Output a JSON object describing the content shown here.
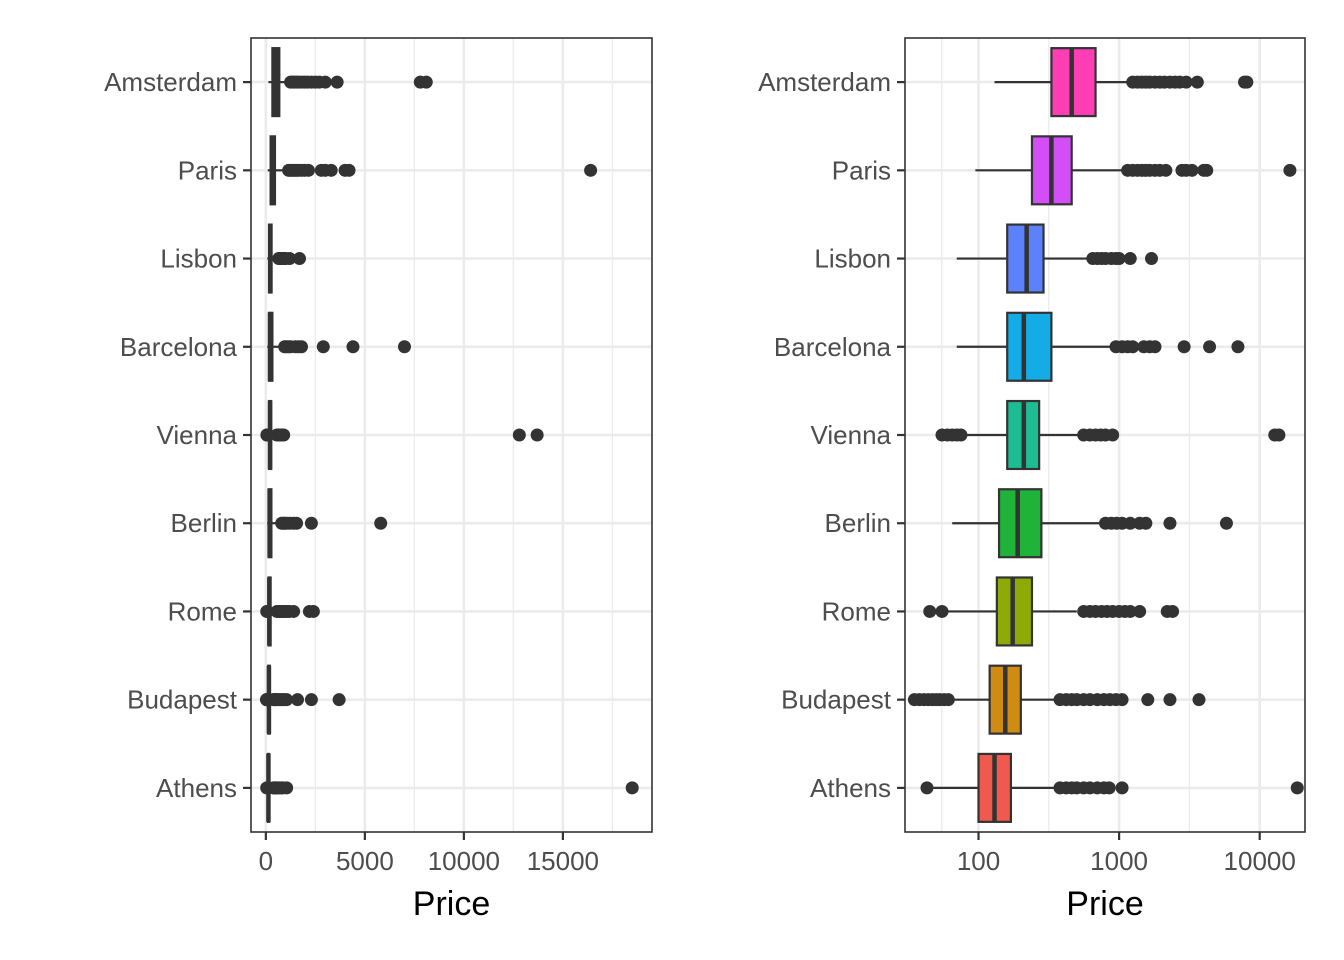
{
  "chart_data": [
    {
      "type": "boxplot",
      "panel": "linear",
      "categories": [
        "Amsterdam",
        "Paris",
        "Lisbon",
        "Barcelona",
        "Vienna",
        "Berlin",
        "Rome",
        "Budapest",
        "Athens"
      ],
      "xlabel": "Price",
      "xscale": "linear",
      "xlim": [
        -750,
        19500
      ],
      "xticks": [
        0,
        5000,
        10000,
        15000
      ],
      "xtick_labels": [
        "0",
        "5000",
        "10000",
        "15000"
      ],
      "grid": true,
      "fill": "#333333",
      "boxes": [
        {
          "category": "Amsterdam",
          "whisker_low": 130,
          "q1": 330,
          "median": 460,
          "q3": 680,
          "whisker_high": 1200,
          "outliers": [
            1250,
            1350,
            1450,
            1550,
            1650,
            1800,
            1950,
            2100,
            2300,
            2500,
            2700,
            3000,
            3600,
            7800,
            8100
          ]
        },
        {
          "category": "Paris",
          "whisker_low": 95,
          "q1": 240,
          "median": 330,
          "q3": 460,
          "whisker_high": 1100,
          "outliers": [
            1150,
            1250,
            1350,
            1450,
            1550,
            1650,
            1800,
            1950,
            2150,
            2800,
            3000,
            3300,
            4000,
            4200,
            16400
          ]
        },
        {
          "category": "Lisbon",
          "whisker_low": 70,
          "q1": 160,
          "median": 220,
          "q3": 290,
          "whisker_high": 600,
          "outliers": [
            650,
            700,
            750,
            800,
            880,
            950,
            1000,
            1200,
            1700
          ]
        },
        {
          "category": "Barcelona",
          "whisker_low": 70,
          "q1": 160,
          "median": 210,
          "q3": 330,
          "whisker_high": 900,
          "outliers": [
            950,
            1050,
            1150,
            1250,
            1500,
            1650,
            1800,
            2900,
            4400,
            7000
          ]
        },
        {
          "category": "Vienna",
          "whisker_low": 80,
          "q1": 160,
          "median": 210,
          "q3": 270,
          "whisker_high": 520,
          "outliers": [
            55,
            60,
            65,
            70,
            75,
            560,
            620,
            680,
            740,
            800,
            900,
            12800,
            13700
          ]
        },
        {
          "category": "Berlin",
          "whisker_low": 65,
          "q1": 140,
          "median": 190,
          "q3": 280,
          "whisker_high": 750,
          "outliers": [
            800,
            880,
            960,
            1050,
            1200,
            1400,
            1550,
            2300,
            5800
          ]
        },
        {
          "category": "Rome",
          "whisker_low": 60,
          "q1": 135,
          "median": 175,
          "q3": 240,
          "whisker_high": 500,
          "outliers": [
            45,
            55,
            560,
            620,
            680,
            750,
            820,
            900,
            1000,
            1100,
            1200,
            1400,
            2200,
            2400
          ]
        },
        {
          "category": "Budapest",
          "whisker_low": 65,
          "q1": 120,
          "median": 155,
          "q3": 200,
          "whisker_high": 350,
          "outliers": [
            35,
            38,
            41,
            44,
            47,
            50,
            53,
            57,
            61,
            380,
            420,
            460,
            500,
            560,
            620,
            700,
            780,
            860,
            950,
            1050,
            1600,
            2300,
            3700
          ]
        },
        {
          "category": "Athens",
          "whisker_low": 45,
          "q1": 100,
          "median": 130,
          "q3": 170,
          "whisker_high": 350,
          "outliers": [
            43,
            380,
            420,
            460,
            500,
            560,
            620,
            700,
            780,
            850,
            1050,
            18500
          ]
        }
      ]
    },
    {
      "type": "boxplot",
      "panel": "log10",
      "categories": [
        "Amsterdam",
        "Paris",
        "Lisbon",
        "Barcelona",
        "Vienna",
        "Berlin",
        "Rome",
        "Budapest",
        "Athens"
      ],
      "xlabel": "Price",
      "xscale": "log10",
      "xlim": [
        30,
        21000
      ],
      "xticks": [
        100,
        1000,
        10000
      ],
      "xtick_labels": [
        "100",
        "1000",
        "10000"
      ],
      "grid": true,
      "colors": [
        "#FF3DB5",
        "#D44EF7",
        "#5B82FC",
        "#13ACE6",
        "#1DBC93",
        "#1FB339",
        "#8DAA06",
        "#D08B12",
        "#F0594E"
      ],
      "boxes": "same as linear panel"
    }
  ]
}
